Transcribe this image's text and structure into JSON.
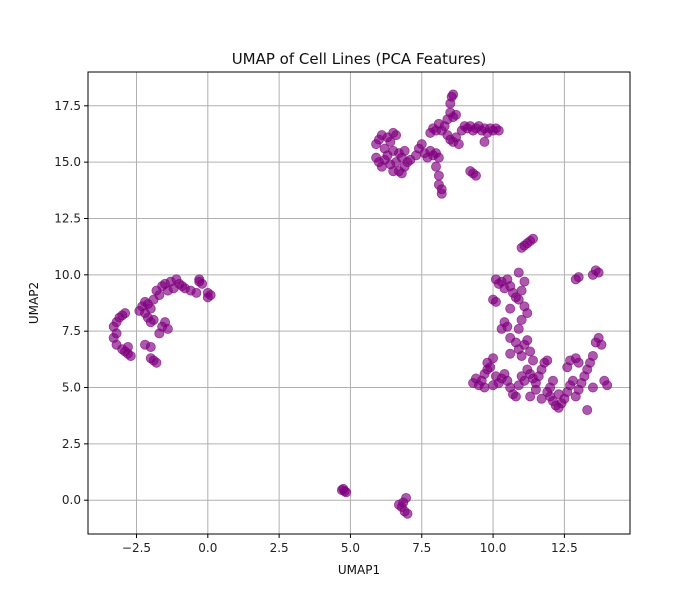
{
  "chart_data": {
    "type": "scatter",
    "title": "UMAP of Cell Lines (PCA Features)",
    "xlabel": "UMAP1",
    "ylabel": "UMAP2",
    "xlim": [
      -4.2,
      14.8
    ],
    "ylim": [
      -1.5,
      19.0
    ],
    "x_ticks": [
      -2.5,
      0.0,
      2.5,
      5.0,
      7.5,
      10.0,
      12.5
    ],
    "x_tick_labels": [
      "−2.5",
      "0.0",
      "2.5",
      "5.0",
      "7.5",
      "10.0",
      "12.5"
    ],
    "y_ticks": [
      0.0,
      2.5,
      5.0,
      7.5,
      10.0,
      12.5,
      15.0,
      17.5
    ],
    "y_tick_labels": [
      "0.0",
      "2.5",
      "5.0",
      "7.5",
      "10.0",
      "12.5",
      "15.0",
      "17.5"
    ],
    "grid": true,
    "marker_color": "#800080",
    "marker_alpha": 0.65,
    "points": [
      [
        -3.3,
        7.7
      ],
      [
        -3.2,
        7.9
      ],
      [
        -3.1,
        8.1
      ],
      [
        -3.0,
        8.2
      ],
      [
        -2.9,
        8.3
      ],
      [
        -3.2,
        7.4
      ],
      [
        -3.3,
        7.2
      ],
      [
        -3.2,
        6.9
      ],
      [
        -3.0,
        6.7
      ],
      [
        -2.8,
        6.5
      ],
      [
        -2.7,
        6.4
      ],
      [
        -2.8,
        6.8
      ],
      [
        -2.9,
        6.6
      ],
      [
        -2.4,
        8.4
      ],
      [
        -2.3,
        8.6
      ],
      [
        -2.2,
        8.8
      ],
      [
        -2.1,
        8.7
      ],
      [
        -2.0,
        8.5
      ],
      [
        -1.9,
        8.9
      ],
      [
        -2.2,
        8.3
      ],
      [
        -2.1,
        8.1
      ],
      [
        -2.0,
        7.9
      ],
      [
        -1.8,
        9.3
      ],
      [
        -1.6,
        9.5
      ],
      [
        -1.5,
        9.6
      ],
      [
        -1.3,
        9.7
      ],
      [
        -1.1,
        9.8
      ],
      [
        -1.0,
        9.6
      ],
      [
        -0.8,
        9.4
      ],
      [
        -0.6,
        9.3
      ],
      [
        -0.4,
        9.2
      ],
      [
        -0.9,
        9.5
      ],
      [
        -1.2,
        9.4
      ],
      [
        -1.4,
        9.3
      ],
      [
        -1.7,
        9.1
      ],
      [
        -1.6,
        7.7
      ],
      [
        -1.5,
        7.9
      ],
      [
        -1.4,
        7.6
      ],
      [
        -1.7,
        7.4
      ],
      [
        -1.9,
        8.0
      ],
      [
        -2.2,
        6.9
      ],
      [
        -2.0,
        6.8
      ],
      [
        -1.9,
        6.2
      ],
      [
        -2.0,
        6.3
      ],
      [
        -1.8,
        6.1
      ],
      [
        -0.3,
        9.8
      ],
      [
        -0.2,
        9.6
      ],
      [
        -0.3,
        9.7
      ],
      [
        0.0,
        9.2
      ],
      [
        0.1,
        9.1
      ],
      [
        0.0,
        9.0
      ],
      [
        4.7,
        0.45
      ],
      [
        4.8,
        0.4
      ],
      [
        4.85,
        0.35
      ],
      [
        4.75,
        0.5
      ],
      [
        6.7,
        -0.2
      ],
      [
        6.8,
        -0.3
      ],
      [
        6.9,
        -0.5
      ],
      [
        7.0,
        -0.6
      ],
      [
        6.95,
        0.1
      ],
      [
        6.85,
        -0.1
      ],
      [
        5.9,
        15.8
      ],
      [
        6.0,
        16.0
      ],
      [
        6.1,
        16.2
      ],
      [
        6.3,
        16.1
      ],
      [
        6.5,
        16.3
      ],
      [
        6.6,
        16.2
      ],
      [
        6.4,
        15.9
      ],
      [
        5.9,
        15.2
      ],
      [
        6.0,
        15.0
      ],
      [
        6.1,
        14.8
      ],
      [
        6.2,
        15.1
      ],
      [
        6.3,
        15.3
      ],
      [
        6.4,
        14.9
      ],
      [
        6.5,
        14.6
      ],
      [
        6.6,
        15.0
      ],
      [
        6.7,
        15.4
      ],
      [
        6.8,
        15.2
      ],
      [
        6.9,
        14.8
      ],
      [
        6.8,
        14.5
      ],
      [
        6.7,
        14.6
      ],
      [
        6.2,
        15.6
      ],
      [
        6.5,
        15.5
      ],
      [
        6.9,
        15.5
      ],
      [
        7.0,
        15.0
      ],
      [
        7.1,
        15.1
      ],
      [
        7.3,
        15.3
      ],
      [
        7.4,
        15.6
      ],
      [
        7.6,
        15.4
      ],
      [
        7.7,
        15.2
      ],
      [
        7.8,
        15.5
      ],
      [
        7.9,
        15.3
      ],
      [
        8.0,
        15.4
      ],
      [
        8.1,
        15.2
      ],
      [
        8.0,
        14.8
      ],
      [
        8.1,
        14.4
      ],
      [
        8.1,
        14.0
      ],
      [
        8.2,
        13.8
      ],
      [
        8.2,
        13.6
      ],
      [
        7.5,
        15.8
      ],
      [
        7.8,
        16.3
      ],
      [
        7.9,
        16.5
      ],
      [
        8.0,
        16.4
      ],
      [
        8.1,
        16.7
      ],
      [
        8.2,
        16.4
      ],
      [
        8.3,
        16.6
      ],
      [
        8.4,
        16.2
      ],
      [
        8.5,
        16.0
      ],
      [
        8.6,
        15.9
      ],
      [
        8.7,
        16.1
      ],
      [
        8.8,
        15.8
      ],
      [
        8.9,
        16.4
      ],
      [
        9.0,
        16.6
      ],
      [
        9.1,
        16.5
      ],
      [
        9.2,
        16.6
      ],
      [
        9.3,
        16.4
      ],
      [
        9.4,
        16.5
      ],
      [
        9.5,
        16.6
      ],
      [
        9.6,
        16.4
      ],
      [
        9.7,
        16.5
      ],
      [
        9.8,
        16.3
      ],
      [
        9.9,
        16.5
      ],
      [
        10.0,
        16.4
      ],
      [
        10.1,
        16.5
      ],
      [
        10.2,
        16.4
      ],
      [
        9.7,
        15.9
      ],
      [
        8.5,
        17.6
      ],
      [
        8.55,
        17.9
      ],
      [
        8.6,
        18.0
      ],
      [
        8.5,
        17.2
      ],
      [
        8.6,
        17.0
      ],
      [
        8.7,
        17.1
      ],
      [
        8.4,
        16.9
      ],
      [
        9.2,
        14.6
      ],
      [
        9.3,
        14.5
      ],
      [
        9.4,
        14.4
      ],
      [
        9.3,
        5.2
      ],
      [
        9.4,
        5.4
      ],
      [
        9.5,
        5.1
      ],
      [
        9.6,
        5.3
      ],
      [
        9.7,
        5.6
      ],
      [
        9.8,
        5.8
      ],
      [
        9.8,
        6.1
      ],
      [
        9.9,
        5.9
      ],
      [
        10.0,
        6.3
      ],
      [
        9.7,
        5.0
      ],
      [
        10.0,
        5.1
      ],
      [
        10.1,
        5.5
      ],
      [
        10.2,
        5.2
      ],
      [
        10.3,
        5.4
      ],
      [
        10.4,
        5.6
      ],
      [
        10.5,
        5.3
      ],
      [
        10.6,
        5.0
      ],
      [
        10.7,
        4.7
      ],
      [
        10.8,
        4.6
      ],
      [
        10.9,
        5.1
      ],
      [
        11.0,
        5.5
      ],
      [
        11.1,
        5.3
      ],
      [
        11.2,
        5.8
      ],
      [
        11.3,
        5.6
      ],
      [
        11.4,
        5.4
      ],
      [
        11.5,
        5.2
      ],
      [
        11.6,
        5.5
      ],
      [
        11.7,
        5.8
      ],
      [
        11.8,
        6.1
      ],
      [
        11.9,
        6.2
      ],
      [
        12.0,
        5.0
      ],
      [
        12.0,
        4.6
      ],
      [
        12.1,
        4.4
      ],
      [
        12.2,
        4.2
      ],
      [
        12.3,
        4.1
      ],
      [
        12.4,
        4.3
      ],
      [
        12.5,
        4.5
      ],
      [
        12.6,
        4.8
      ],
      [
        12.7,
        5.1
      ],
      [
        12.8,
        5.3
      ],
      [
        12.9,
        4.6
      ],
      [
        13.0,
        4.9
      ],
      [
        13.1,
        5.2
      ],
      [
        13.2,
        5.5
      ],
      [
        13.3,
        5.8
      ],
      [
        13.4,
        6.1
      ],
      [
        13.5,
        6.4
      ],
      [
        13.6,
        7.0
      ],
      [
        13.7,
        7.2
      ],
      [
        13.8,
        6.9
      ],
      [
        13.9,
        5.3
      ],
      [
        14.0,
        5.1
      ],
      [
        13.5,
        5.0
      ],
      [
        13.3,
        4.0
      ],
      [
        12.7,
        6.2
      ],
      [
        12.9,
        6.3
      ],
      [
        13.0,
        6.1
      ],
      [
        12.6,
        5.9
      ],
      [
        12.3,
        4.7
      ],
      [
        12.1,
        5.3
      ],
      [
        11.9,
        4.8
      ],
      [
        11.7,
        4.5
      ],
      [
        11.5,
        4.9
      ],
      [
        11.3,
        4.6
      ],
      [
        10.1,
        9.8
      ],
      [
        10.2,
        9.6
      ],
      [
        10.3,
        9.7
      ],
      [
        10.4,
        9.4
      ],
      [
        10.5,
        9.8
      ],
      [
        10.6,
        9.5
      ],
      [
        10.7,
        9.2
      ],
      [
        10.8,
        9.0
      ],
      [
        10.9,
        8.9
      ],
      [
        11.0,
        9.3
      ],
      [
        11.1,
        8.6
      ],
      [
        11.2,
        8.3
      ],
      [
        11.0,
        8.0
      ],
      [
        10.6,
        8.5
      ],
      [
        10.4,
        7.9
      ],
      [
        10.3,
        7.6
      ],
      [
        10.5,
        7.7
      ],
      [
        10.6,
        7.2
      ],
      [
        10.8,
        7.0
      ],
      [
        10.9,
        6.7
      ],
      [
        11.0,
        6.4
      ],
      [
        11.1,
        6.9
      ],
      [
        11.2,
        7.1
      ],
      [
        11.3,
        6.6
      ],
      [
        11.4,
        6.2
      ],
      [
        10.6,
        6.5
      ],
      [
        10.9,
        7.6
      ],
      [
        11.1,
        9.7
      ],
      [
        10.0,
        8.9
      ],
      [
        10.1,
        8.8
      ],
      [
        10.9,
        10.1
      ],
      [
        11.0,
        11.2
      ],
      [
        11.1,
        11.3
      ],
      [
        11.2,
        11.4
      ],
      [
        11.3,
        11.5
      ],
      [
        11.4,
        11.6
      ],
      [
        12.9,
        9.8
      ],
      [
        13.0,
        9.9
      ],
      [
        13.6,
        10.2
      ],
      [
        13.7,
        10.1
      ],
      [
        13.5,
        10.0
      ]
    ]
  }
}
